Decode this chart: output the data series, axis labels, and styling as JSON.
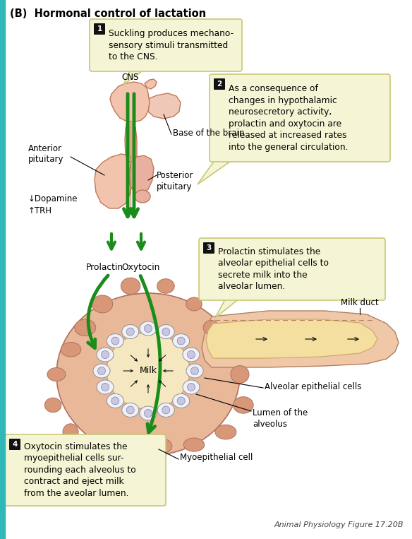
{
  "title": "(B)  Hormonal control of lactation",
  "bg_color": "#ffffff",
  "callout_bg": "#f5f5d5",
  "callout_border": "#c8c878",
  "teal_border": "#30b8b8",
  "green_arrow": "#1a8c1a",
  "pituitary_fill": "#f2c4ae",
  "pituitary_stroke": "#c07858",
  "pituitary_dark": "#e0a888",
  "box1_text": "Suckling produces mechano-\nsensory stimuli transmitted\nto the CNS.",
  "box2_text": "As a consequence of\nchanges in hypothalamic\nneurosecretory activity,\nprolactin and oxytocin are\nreleased at increased rates\ninto the general circulation.",
  "box3_text": "Prolactin stimulates the\nalveolar epithelial cells to\nsecrete milk into the\nalveolar lumen.",
  "box4_text": "Oxytocin stimulates the\nmyoepithelial cells sur-\nrounding each alveolus to\ncontract and eject milk\nfrom the aveolar lumen.",
  "caption": "Animal Physiology Figure 17.20B",
  "milk_duct_outer": "#f0c8a8",
  "milk_duct_inner": "#f5dfa0",
  "alveolus_outer": "#e8b898",
  "alveolus_lobule": "#d4a080",
  "alveolus_lumen": "#f5e8c0",
  "cell_white": "#f0f0f8",
  "cell_nucleus": "#c8c8e0",
  "cell_border": "#909090"
}
